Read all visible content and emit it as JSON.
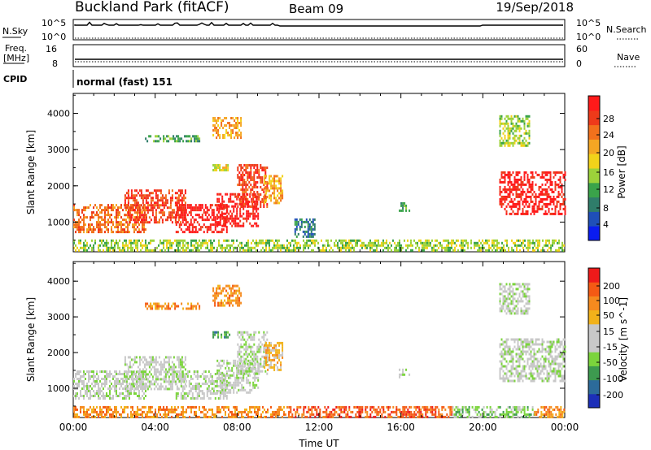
{
  "header": {
    "station": "Buckland Park (fitACF)",
    "beam": "Beam 09",
    "date": "19/Sep/2018"
  },
  "top_panels": {
    "nsky_label": "N.Sky",
    "nsky_tick_high": "10^5",
    "nsky_tick_low": "10^0",
    "nsearch_label": "N.Search",
    "freq_label_1": "Freq.",
    "freq_label_2": "[MHz]",
    "freq_tick_high": "16",
    "freq_tick_low": "8",
    "nave_tick_high": "60",
    "nave_tick_low": "0",
    "nave_label": "Nave",
    "cpid_label": "CPID",
    "cpid_text": "normal (fast) 151"
  },
  "chart_data": [
    {
      "type": "heatmap",
      "name": "power",
      "ylabel": "Slant Range [km]",
      "ylim": [
        180,
        4550
      ],
      "xlim_hours": [
        0,
        24
      ],
      "yticks": [
        "1000",
        "2000",
        "3000",
        "4000"
      ],
      "colorbar": {
        "label": "Power [dB]",
        "ticks": [
          "4",
          "8",
          "12",
          "16",
          "20",
          "24",
          "28"
        ],
        "colors": [
          "#0a1cf0",
          "#1f4fb8",
          "#2f7d6a",
          "#3aa34a",
          "#9cd23a",
          "#f2d21a",
          "#f5a623",
          "#f2711c",
          "#ee3a1a",
          "#ff1a1a"
        ]
      },
      "regions": [
        {
          "t0": 0.0,
          "t1": 24.0,
          "r0": 220,
          "r1": 520,
          "level": 4
        },
        {
          "t0": 0.0,
          "t1": 3.5,
          "r0": 700,
          "r1": 1500,
          "level": 7
        },
        {
          "t0": 2.5,
          "t1": 5.5,
          "r0": 1000,
          "r1": 1900,
          "level": 8
        },
        {
          "t0": 5.0,
          "t1": 7.5,
          "r0": 700,
          "r1": 1500,
          "level": 9
        },
        {
          "t0": 7.0,
          "t1": 9.0,
          "r0": 900,
          "r1": 1800,
          "level": 9
        },
        {
          "t0": 8.0,
          "t1": 9.5,
          "r0": 1400,
          "r1": 2600,
          "level": 8
        },
        {
          "t0": 9.3,
          "t1": 10.2,
          "r0": 1500,
          "r1": 2300,
          "level": 6
        },
        {
          "t0": 3.5,
          "t1": 6.2,
          "r0": 3200,
          "r1": 3400,
          "level": 3
        },
        {
          "t0": 6.8,
          "t1": 8.2,
          "r0": 3350,
          "r1": 3900,
          "level": 6
        },
        {
          "t0": 6.8,
          "t1": 7.6,
          "r0": 2400,
          "r1": 2600,
          "level": 5
        },
        {
          "t0": 15.9,
          "t1": 16.4,
          "r0": 1300,
          "r1": 1550,
          "level": 3
        },
        {
          "t0": 10.8,
          "t1": 11.8,
          "r0": 600,
          "r1": 1100,
          "level": 2
        },
        {
          "t0": 20.8,
          "t1": 24.0,
          "r0": 1200,
          "r1": 2400,
          "level": 9
        },
        {
          "t0": 20.8,
          "t1": 22.3,
          "r0": 3100,
          "r1": 3950,
          "level": 4
        }
      ]
    },
    {
      "type": "heatmap",
      "name": "velocity",
      "ylabel": "Slant Range [km]",
      "xlabel": "Time UT",
      "ylim": [
        180,
        4550
      ],
      "xlim_hours": [
        0,
        24
      ],
      "yticks": [
        "1000",
        "2000",
        "3000",
        "4000"
      ],
      "xticks": [
        "00:00",
        "04:00",
        "08:00",
        "12:00",
        "16:00",
        "20:00",
        "00:00"
      ],
      "colorbar": {
        "label": "Velocity [m s^-1]",
        "ticks": [
          "200",
          "100",
          "50",
          "15",
          "-15",
          "-50",
          "-100",
          "-200"
        ],
        "colors": [
          "#1c2fb8",
          "#2c6b9a",
          "#3d9a4f",
          "#7bd43c",
          "#c8c8c8",
          "#c8c8c8",
          "#f2b21a",
          "#f58a1e",
          "#f45a14",
          "#ee1a1a"
        ]
      },
      "regions": [
        {
          "t0": 0.0,
          "t1": 10.5,
          "r0": 220,
          "r1": 500,
          "level": 7
        },
        {
          "t0": 10.5,
          "t1": 18.5,
          "r0": 220,
          "r1": 500,
          "level": 8
        },
        {
          "t0": 18.5,
          "t1": 22.5,
          "r0": 220,
          "r1": 500,
          "level": 3
        },
        {
          "t0": 22.5,
          "t1": 24.0,
          "r0": 220,
          "r1": 500,
          "level": 7
        },
        {
          "t0": 0.0,
          "t1": 3.5,
          "r0": 700,
          "r1": 1500,
          "level": 4
        },
        {
          "t0": 2.5,
          "t1": 5.5,
          "r0": 1000,
          "r1": 1900,
          "level": 4
        },
        {
          "t0": 5.0,
          "t1": 7.5,
          "r0": 700,
          "r1": 1500,
          "level": 4
        },
        {
          "t0": 7.0,
          "t1": 9.0,
          "r0": 900,
          "r1": 1800,
          "level": 4
        },
        {
          "t0": 8.0,
          "t1": 9.5,
          "r0": 1400,
          "r1": 2600,
          "level": 4
        },
        {
          "t0": 9.3,
          "t1": 10.2,
          "r0": 1500,
          "r1": 2300,
          "level": 6
        },
        {
          "t0": 3.5,
          "t1": 6.2,
          "r0": 3200,
          "r1": 3400,
          "level": 7
        },
        {
          "t0": 6.8,
          "t1": 8.2,
          "r0": 3350,
          "r1": 3900,
          "level": 7
        },
        {
          "t0": 6.8,
          "t1": 7.6,
          "r0": 2400,
          "r1": 2600,
          "level": 2
        },
        {
          "t0": 15.9,
          "t1": 16.4,
          "r0": 1300,
          "r1": 1550,
          "level": 4
        },
        {
          "t0": 20.8,
          "t1": 24.0,
          "r0": 1200,
          "r1": 2400,
          "level": 4
        },
        {
          "t0": 20.8,
          "t1": 22.3,
          "r0": 3100,
          "r1": 3950,
          "level": 4
        }
      ]
    }
  ]
}
